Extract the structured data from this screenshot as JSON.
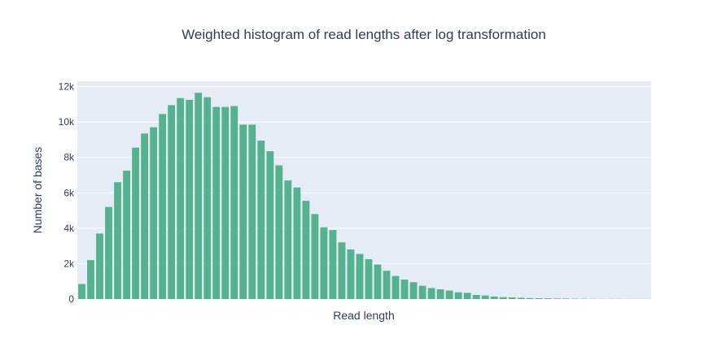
{
  "chart_data": {
    "type": "bar",
    "title": "Weighted histogram of read lengths after log transformation",
    "xlabel": "Read length",
    "ylabel": "Number of bases",
    "ylim": [
      0,
      12300
    ],
    "yticks": [
      0,
      2000,
      4000,
      6000,
      8000,
      10000,
      12000
    ],
    "ytick_labels": [
      "0",
      "2k",
      "4k",
      "6k",
      "8k",
      "10k",
      "12k"
    ],
    "grid": true,
    "bar_color": "#54b38e",
    "plot_bg": "#e5ecf6",
    "values": [
      850,
      2200,
      3700,
      5200,
      6600,
      7250,
      8550,
      9350,
      9700,
      10450,
      10950,
      11350,
      11250,
      11650,
      11400,
      10850,
      10850,
      10900,
      9850,
      9850,
      8950,
      8350,
      7550,
      6700,
      6300,
      5550,
      4800,
      4050,
      3900,
      3200,
      2800,
      2550,
      2250,
      1950,
      1600,
      1300,
      1100,
      950,
      750,
      620,
      550,
      480,
      380,
      350,
      230,
      200,
      140,
      110,
      90,
      70,
      55,
      45,
      40,
      30,
      25,
      20,
      15,
      12,
      10,
      8,
      6,
      5,
      4,
      3
    ]
  }
}
